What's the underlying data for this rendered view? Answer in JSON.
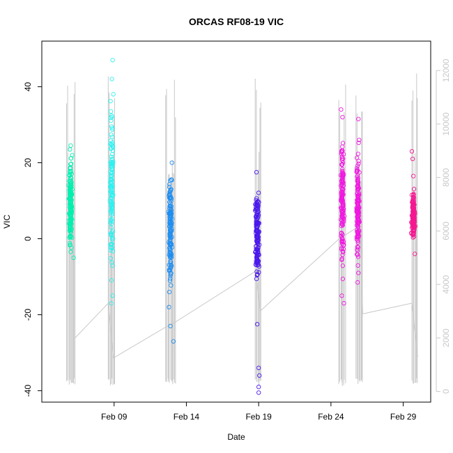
{
  "chart_data": {
    "type": "scatter",
    "title": "ORCAS RF08-19 VIC",
    "xlabel": "Date",
    "ylabel": "VIC",
    "x_ticks": [
      "Feb 09",
      "Feb 14",
      "Feb 19",
      "Feb 24",
      "Feb 29"
    ],
    "x_tick_days": [
      9,
      14,
      19,
      24,
      29
    ],
    "xlim_days": [
      4.0,
      30.9
    ],
    "ylim": [
      -43,
      52
    ],
    "y_ticks": [
      -40,
      -20,
      0,
      20,
      40
    ],
    "y2_ticks": [
      0,
      2000,
      4000,
      6000,
      8000,
      10000,
      12000
    ],
    "y2lim": [
      -400,
      13100
    ],
    "grid": false,
    "legend": "none",
    "colors": {
      "rf08": "#00f0b0",
      "rf09": "#30f0f0",
      "rf10": "#1e8ef0",
      "rf11": "#4a18ec",
      "rf12": "#f018e0",
      "rf13": "#f41890",
      "altitude_line": "#c8c8c8"
    },
    "flights": [
      {
        "day_start": 5.85,
        "day_end": 6.25,
        "vic_center": 9,
        "vic_min": -6,
        "vic_max": 25,
        "color_key": "rf08",
        "outliers": [
          [
            6.0,
            24.5
          ],
          [
            6.1,
            22.0
          ],
          [
            5.95,
            23.5
          ],
          [
            6.2,
            -5.0
          ]
        ]
      },
      {
        "day_start": 8.7,
        "day_end": 9.05,
        "vic_center": 12,
        "vic_min": -17,
        "vic_max": 42,
        "color_key": "rf09",
        "outliers": [
          [
            8.9,
            47.0
          ],
          [
            8.85,
            42.0
          ],
          [
            8.95,
            38.0
          ],
          [
            8.8,
            -17.0
          ],
          [
            8.9,
            -15.0
          ]
        ]
      },
      {
        "day_start": 12.75,
        "day_end": 13.15,
        "vic_center": 2,
        "vic_min": -23,
        "vic_max": 20,
        "color_key": "rf10",
        "outliers": [
          [
            13.1,
            -27.0
          ],
          [
            12.9,
            -23.0
          ],
          [
            12.8,
            -18.0
          ],
          [
            13.0,
            20.0
          ]
        ]
      },
      {
        "day_start": 18.75,
        "day_end": 19.2,
        "vic_center": 1,
        "vic_min": -22,
        "vic_max": 17,
        "color_key": "rf11",
        "outliers": [
          [
            19.0,
            -34.0
          ],
          [
            19.05,
            -36.0
          ],
          [
            19.0,
            -39.0
          ],
          [
            19.0,
            -40.5
          ],
          [
            18.9,
            -22.5
          ],
          [
            18.85,
            17.5
          ]
        ]
      },
      {
        "day_start": 24.65,
        "day_end": 25.05,
        "vic_center": 10,
        "vic_min": -17,
        "vic_max": 32,
        "color_key": "rf12",
        "outliers": [
          [
            24.7,
            34.0
          ],
          [
            24.8,
            32.0
          ],
          [
            24.9,
            -17.0
          ],
          [
            24.75,
            -15.0
          ]
        ]
      },
      {
        "day_start": 25.75,
        "day_end": 26.1,
        "vic_center": 8,
        "vic_min": -11,
        "vic_max": 26,
        "color_key": "rf12",
        "outliers": [
          [
            25.9,
            31.5
          ],
          [
            25.95,
            26.0
          ],
          [
            25.85,
            -11.5
          ],
          [
            25.9,
            -9.0
          ]
        ]
      },
      {
        "day_start": 29.55,
        "day_end": 29.95,
        "vic_center": 6,
        "vic_min": -4,
        "vic_max": 14,
        "color_key": "rf13",
        "outliers": [
          [
            29.6,
            23.0
          ],
          [
            29.65,
            21.0
          ],
          [
            29.7,
            16.5
          ],
          [
            29.8,
            -4.0
          ]
        ]
      }
    ],
    "altitude_series": {
      "name": "",
      "axis": "right",
      "spikes_days": [
        [
          5.7,
          6.3
        ],
        [
          8.6,
          9.05
        ],
        [
          12.55,
          13.25
        ],
        [
          18.75,
          19.15
        ],
        [
          24.55,
          25.0
        ],
        [
          25.75,
          26.2
        ],
        [
          29.6,
          30.0
        ]
      ],
      "spike_top": 12000,
      "spike_bottom": 200,
      "baseline": [
        [
          6.3,
          2000
        ],
        [
          8.6,
          3300
        ],
        [
          8.95,
          1250
        ],
        [
          12.55,
          2400
        ],
        [
          13.25,
          2600
        ],
        [
          18.8,
          4500
        ],
        [
          19.1,
          3000
        ],
        [
          24.55,
          5700
        ],
        [
          26.0,
          6200
        ],
        [
          26.2,
          2900
        ],
        [
          29.6,
          3300
        ],
        [
          30.0,
          1300
        ]
      ]
    }
  }
}
